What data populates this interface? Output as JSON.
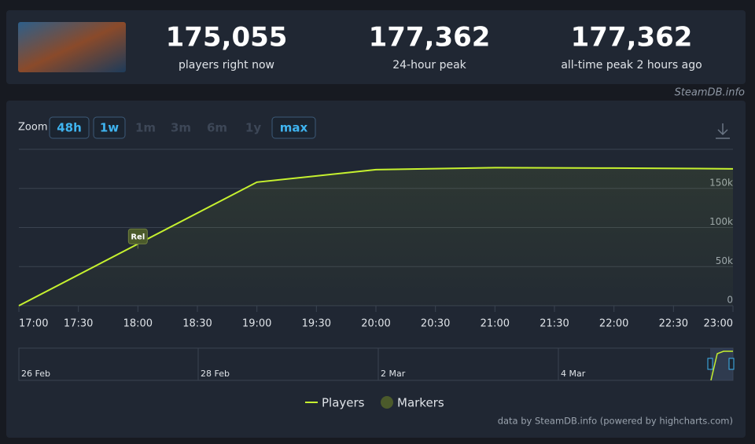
{
  "stats": [
    {
      "value": "175,055",
      "label": "players right now"
    },
    {
      "value": "177,362",
      "label": "24-hour peak"
    },
    {
      "value": "177,362",
      "label": "all-time peak 2 hours ago"
    }
  ],
  "source": "SteamDB.info",
  "zoom": {
    "label": "Zoom",
    "buttons": [
      {
        "text": "48h",
        "enabled": true
      },
      {
        "text": "1w",
        "enabled": true
      },
      {
        "text": "1m",
        "enabled": false
      },
      {
        "text": "3m",
        "enabled": false
      },
      {
        "text": "6m",
        "enabled": false
      },
      {
        "text": "1y",
        "enabled": false
      },
      {
        "text": "max",
        "enabled": true
      }
    ]
  },
  "navigator_labels": [
    "26 Feb",
    "28 Feb",
    "2 Mar",
    "4 Mar"
  ],
  "credits": "data by SteamDB.info (powered by highcharts.com)",
  "chart_data": {
    "type": "line",
    "x": [
      17,
      19,
      20,
      21,
      22,
      23
    ],
    "series": [
      {
        "name": "Players",
        "color": "#c6f12f",
        "values": [
          0,
          158000,
          174000,
          176500,
          176000,
          175055
        ]
      }
    ],
    "markers": {
      "name": "Markers",
      "color": "#4b5a2b",
      "items": [
        {
          "x": 18,
          "text": "Rel"
        }
      ]
    },
    "xlim": [
      17,
      23
    ],
    "xticks": [
      {
        "value": 17,
        "label": "17:00"
      },
      {
        "value": 17.5,
        "label": "17:30"
      },
      {
        "value": 18,
        "label": "18:00"
      },
      {
        "value": 18.5,
        "label": "18:30"
      },
      {
        "value": 19,
        "label": "19:00"
      },
      {
        "value": 19.5,
        "label": "19:30"
      },
      {
        "value": 20,
        "label": "20:00"
      },
      {
        "value": 20.5,
        "label": "20:30"
      },
      {
        "value": 21,
        "label": "21:00"
      },
      {
        "value": 21.5,
        "label": "21:30"
      },
      {
        "value": 22,
        "label": "22:00"
      },
      {
        "value": 22.5,
        "label": "22:30"
      },
      {
        "value": 23,
        "label": "23:00"
      }
    ],
    "ylim": [
      0,
      200000
    ],
    "yticks": [
      0,
      {
        "value": 50000,
        "label": "50k"
      },
      {
        "value": 100000,
        "label": "100k"
      },
      {
        "value": 150000,
        "label": "150k"
      }
    ],
    "grid": true
  }
}
